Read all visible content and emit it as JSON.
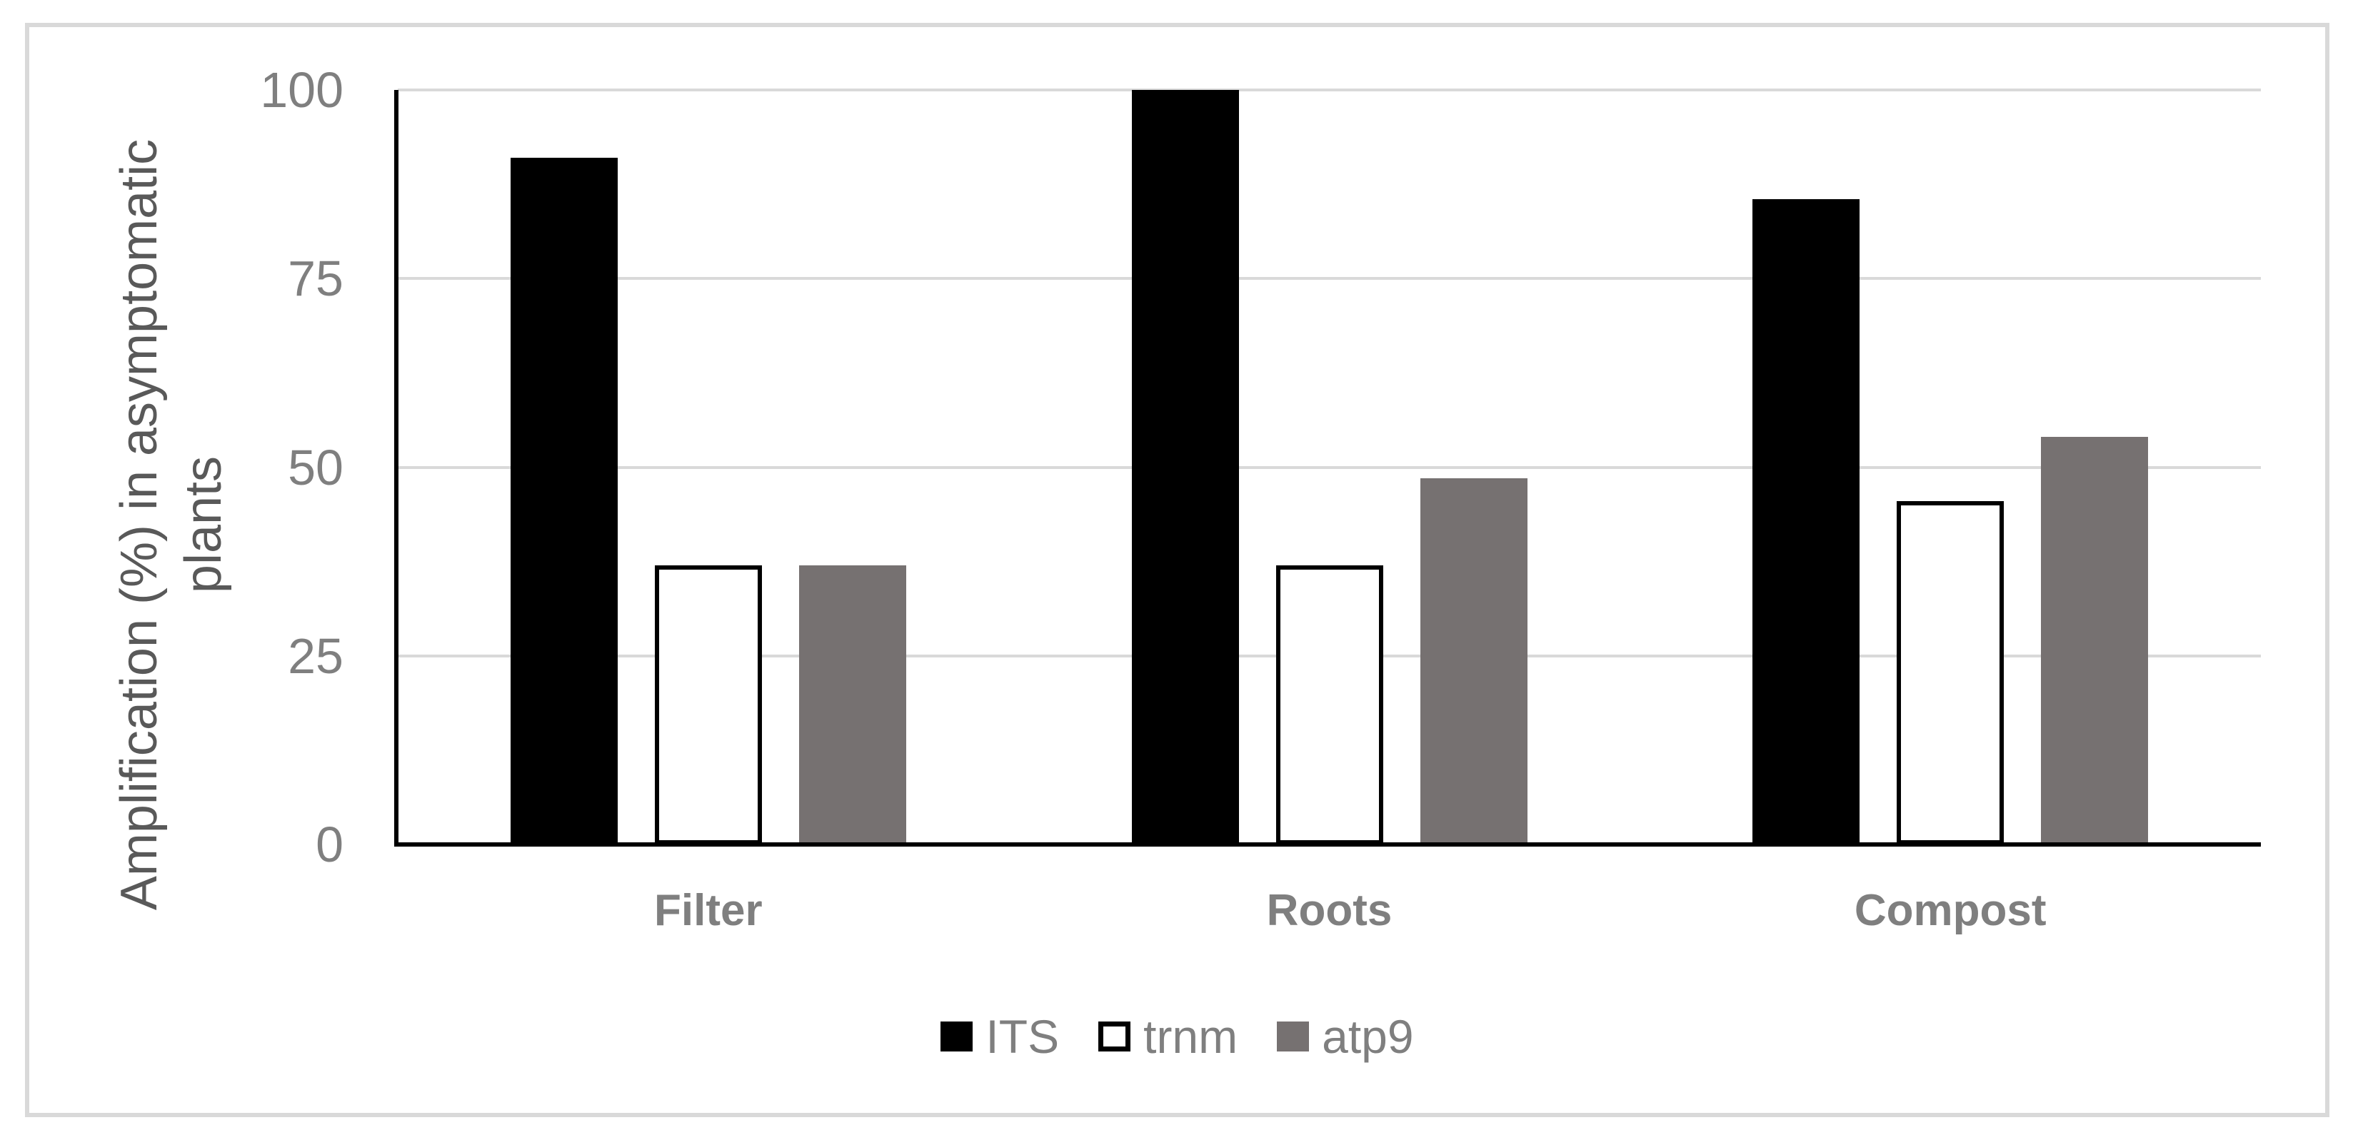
{
  "figure": {
    "background_color": "#ffffff",
    "frame_border_color": "#d9d9d9"
  },
  "chart_data": {
    "type": "bar",
    "title": "",
    "categories": [
      "Filter",
      "Roots",
      "Compost"
    ],
    "series": [
      {
        "name": "ITS",
        "color": "#000000",
        "border": "#000000",
        "outlined": false,
        "values": [
          91,
          100,
          85.5
        ]
      },
      {
        "name": "trnm",
        "color": "#ffffff",
        "border": "#000000",
        "outlined": true,
        "values": [
          37,
          37,
          45.5
        ]
      },
      {
        "name": "atp9",
        "color": "#767171",
        "border": "#767171",
        "outlined": false,
        "values": [
          37,
          48.5,
          54
        ]
      }
    ],
    "xlabel": "",
    "ylabel": "Amplification (%) in asymptomatic plants",
    "ylabel_lines": [
      "Amplification (%) in asymptomatic",
      "plants"
    ],
    "ylim": [
      0,
      100
    ],
    "yticks": [
      0,
      25,
      50,
      75,
      100
    ],
    "grid": "horizontal-only",
    "gridline_color": "#d9d9d9",
    "axis_line_color": "#000000",
    "tick_label_color": "#7f7f7f",
    "category_label_color": "#7f7f7f",
    "axis_title_color": "#595959",
    "legend_text_color": "#7f7f7f",
    "legend_position": "bottom-center"
  }
}
